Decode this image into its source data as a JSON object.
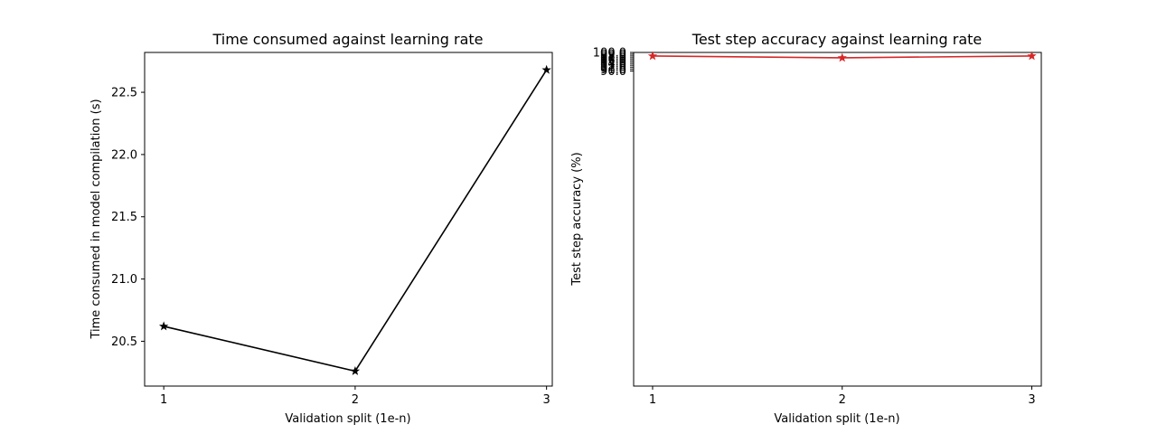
{
  "chart_data": [
    {
      "type": "line",
      "title": "Time consumed against learning rate",
      "xlabel": "Validation split (1e-n)",
      "ylabel": "Time consumed in model compilation (s)",
      "x": [
        1,
        2,
        3
      ],
      "xticks": [
        "1",
        "2",
        "3"
      ],
      "yticks": [
        "20.5",
        "21.0",
        "21.5",
        "22.0",
        "22.5"
      ],
      "xlim": [
        0.9,
        3.03
      ],
      "ylim": [
        20.14,
        22.82
      ],
      "grid": false,
      "series": [
        {
          "values": [
            20.62,
            20.26,
            22.68
          ],
          "color": "#000000",
          "marker": "star"
        }
      ]
    },
    {
      "type": "line",
      "title": "Test step accuracy against learning rate",
      "xlabel": "Validation split (1e-n)",
      "ylabel": "Test step accuracy (%)",
      "x": [
        1,
        2,
        3
      ],
      "xticks": [
        "1",
        "2",
        "3"
      ],
      "yticks": [
        "90.0",
        "91.0",
        "92.0",
        "93.0",
        "94.0",
        "95.0",
        "96.0",
        "97.0",
        "98.0",
        "99.0",
        "100.0"
      ],
      "xlim": [
        0.9,
        3.05
      ],
      "ylim": [
        0.15,
        1.0
      ],
      "y_scale": "log",
      "grid": false,
      "series": [
        {
          "values": [
            0.98,
            0.97,
            0.98
          ],
          "color": "#d62728",
          "marker": "star"
        }
      ]
    }
  ]
}
